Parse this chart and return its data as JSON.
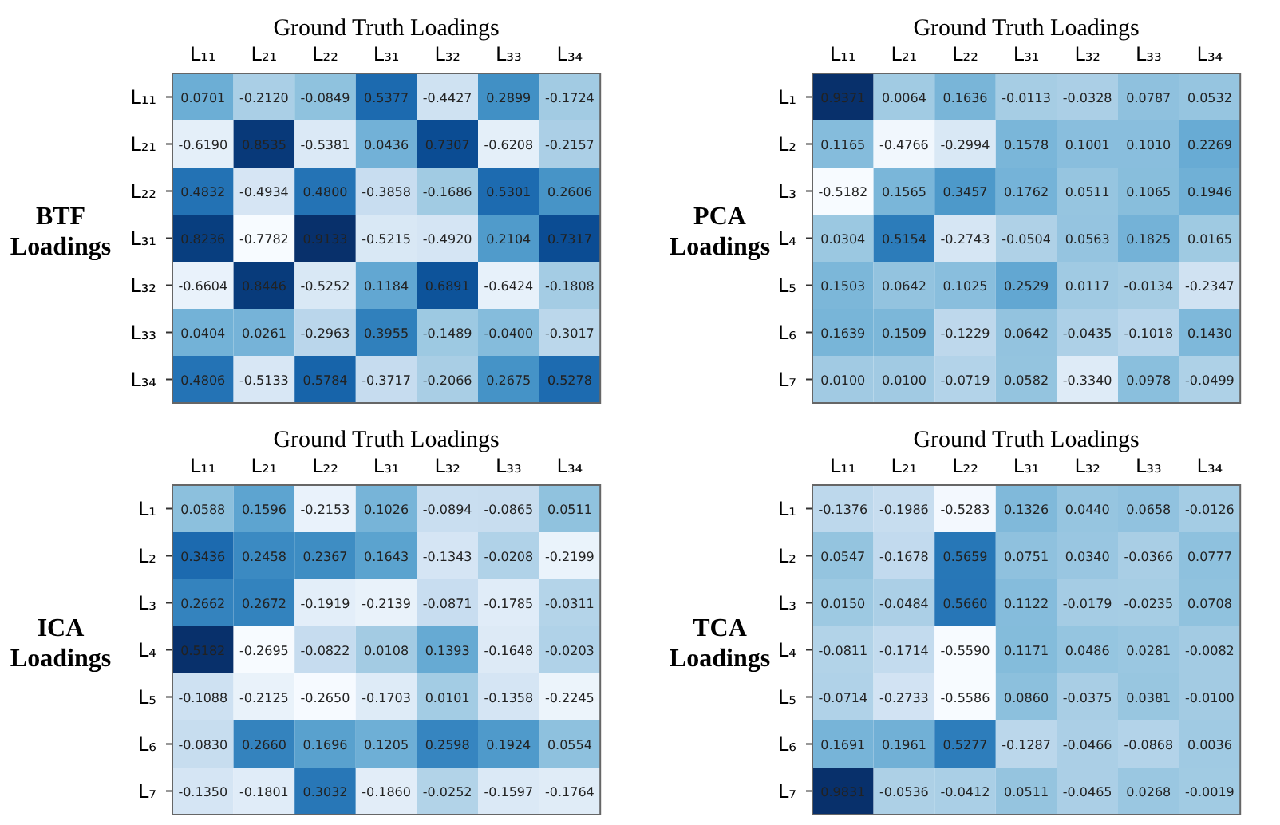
{
  "chart_data": [
    {
      "type": "heatmap",
      "title": "Ground Truth Loadings",
      "ylabel": "BTF Loadings",
      "categories": [
        "L₁₁",
        "L₂₁",
        "L₂₂",
        "L₃₁",
        "L₃₂",
        "L₃₃",
        "L₃₄"
      ],
      "y_categories": [
        "L₁₁",
        "L₂₁",
        "L₂₂",
        "L₃₁",
        "L₃₂",
        "L₃₃",
        "L₃₄"
      ],
      "cells": [
        [
          0.0701,
          -0.212,
          -0.0849,
          0.5377,
          -0.4427,
          0.2899,
          -0.1724
        ],
        [
          -0.619,
          0.8535,
          -0.5381,
          0.0436,
          0.7307,
          -0.6208,
          -0.2157
        ],
        [
          0.4832,
          -0.4934,
          0.48,
          -0.3858,
          -0.1686,
          0.5301,
          0.2606
        ],
        [
          0.8236,
          -0.7782,
          0.9133,
          -0.5215,
          -0.492,
          0.2104,
          0.7317
        ],
        [
          -0.6604,
          0.8446,
          -0.5252,
          0.1184,
          0.6891,
          -0.6424,
          -0.1808
        ],
        [
          0.0404,
          0.0261,
          -0.2963,
          0.3955,
          -0.1489,
          -0.04,
          -0.3017
        ],
        [
          0.4806,
          -0.5133,
          0.5784,
          -0.3717,
          -0.2066,
          0.2675,
          0.5278
        ]
      ],
      "cell_labels": [
        [
          "0.0701",
          "-0.2120",
          "-0.0849",
          "0.5377",
          "-0.4427",
          "0.2899",
          "-0.1724"
        ],
        [
          "-0.6190",
          "0.8535",
          "-0.5381",
          "0.0436",
          "0.7307",
          "-0.6208",
          "-0.2157"
        ],
        [
          "0.4832",
          "-0.4934",
          "0.4800",
          "-0.3858",
          "-0.1686",
          "0.5301",
          "0.2606"
        ],
        [
          "0.8236",
          "-0.7782",
          "0.9133",
          "-0.5215",
          "-0.4920",
          "0.2104",
          "0.7317"
        ],
        [
          "-0.6604",
          "0.8446",
          "-0.5252",
          "0.1184",
          "0.6891",
          "-0.6424",
          "-0.1808"
        ],
        [
          "0.0404",
          "0.0261",
          "-0.2963",
          "0.3955",
          "-0.1489",
          "-0.0400",
          "-0.3017"
        ],
        [
          "0.4806",
          "-0.5133",
          "0.5784",
          "-0.3717",
          "-0.2066",
          "0.2675",
          "0.5278"
        ]
      ]
    },
    {
      "type": "heatmap",
      "title": "Ground Truth Loadings",
      "ylabel": "PCA Loadings",
      "categories": [
        "L₁₁",
        "L₂₁",
        "L₂₂",
        "L₃₁",
        "L₃₂",
        "L₃₃",
        "L₃₄"
      ],
      "y_categories": [
        "L₁",
        "L₂",
        "L₃",
        "L₄",
        "L₅",
        "L₆",
        "L₇"
      ],
      "cells": [
        [
          0.9371,
          0.0064,
          0.1636,
          -0.0113,
          -0.0328,
          0.0787,
          0.0532
        ],
        [
          0.1165,
          -0.4766,
          -0.2994,
          0.1578,
          0.1001,
          0.101,
          0.2269
        ],
        [
          -0.5182,
          0.1565,
          0.3457,
          0.1762,
          0.0511,
          0.1065,
          0.1946
        ],
        [
          0.0304,
          0.5154,
          -0.2743,
          -0.0504,
          0.0563,
          0.1825,
          0.0165
        ],
        [
          0.1503,
          0.0642,
          0.1025,
          0.2529,
          0.0117,
          -0.0134,
          -0.2347
        ],
        [
          0.1639,
          0.1509,
          -0.1229,
          0.0642,
          -0.0435,
          -0.1018,
          0.143
        ],
        [
          0.01,
          0.01,
          -0.0719,
          0.0582,
          -0.334,
          0.0978,
          -0.0499
        ]
      ],
      "cell_labels": [
        [
          "0.9371",
          "0.0064",
          "0.1636",
          "-0.0113",
          "-0.0328",
          "0.0787",
          "0.0532"
        ],
        [
          "0.1165",
          "-0.4766",
          "-0.2994",
          "0.1578",
          "0.1001",
          "0.1010",
          "0.2269"
        ],
        [
          "-0.5182",
          "0.1565",
          "0.3457",
          "0.1762",
          "0.0511",
          "0.1065",
          "0.1946"
        ],
        [
          "0.0304",
          "0.5154",
          "-0.2743",
          "-0.0504",
          "0.0563",
          "0.1825",
          "0.0165"
        ],
        [
          "0.1503",
          "0.0642",
          "0.1025",
          "0.2529",
          "0.0117",
          "-0.0134",
          "-0.2347"
        ],
        [
          "0.1639",
          "0.1509",
          "-0.1229",
          "0.0642",
          "-0.0435",
          "-0.1018",
          "0.1430"
        ],
        [
          "0.0100",
          "0.0100",
          "-0.0719",
          "0.0582",
          "-0.3340",
          "0.0978",
          "-0.0499"
        ]
      ]
    },
    {
      "type": "heatmap",
      "title": "Ground Truth Loadings",
      "ylabel": "ICA Loadings",
      "categories": [
        "L₁₁",
        "L₂₁",
        "L₂₂",
        "L₃₁",
        "L₃₂",
        "L₃₃",
        "L₃₄"
      ],
      "y_categories": [
        "L₁",
        "L₂",
        "L₃",
        "L₄",
        "L₅",
        "L₆",
        "L₇"
      ],
      "cells": [
        [
          0.0588,
          0.1596,
          -0.2153,
          0.1026,
          -0.0894,
          -0.0865,
          0.0511
        ],
        [
          0.3436,
          0.2458,
          0.2367,
          0.1643,
          -0.1343,
          -0.0208,
          -0.2199
        ],
        [
          0.2662,
          0.2672,
          -0.1919,
          -0.2139,
          -0.0871,
          -0.1785,
          -0.0311
        ],
        [
          0.5182,
          -0.2695,
          -0.0822,
          0.0108,
          0.1393,
          -0.1648,
          -0.0203
        ],
        [
          -0.1088,
          -0.2125,
          -0.265,
          -0.1703,
          0.0101,
          -0.1358,
          -0.2245
        ],
        [
          -0.083,
          0.266,
          0.1696,
          0.1205,
          0.2598,
          0.1924,
          0.0554
        ],
        [
          -0.135,
          -0.1801,
          0.3032,
          -0.186,
          -0.0252,
          -0.1597,
          -0.1764
        ]
      ],
      "cell_labels": [
        [
          "0.0588",
          "0.1596",
          "-0.2153",
          "0.1026",
          "-0.0894",
          "-0.0865",
          "0.0511"
        ],
        [
          "0.3436",
          "0.2458",
          "0.2367",
          "0.1643",
          "-0.1343",
          "-0.0208",
          "-0.2199"
        ],
        [
          "0.2662",
          "0.2672",
          "-0.1919",
          "-0.2139",
          "-0.0871",
          "-0.1785",
          "-0.0311"
        ],
        [
          "0.5182",
          "-0.2695",
          "-0.0822",
          "0.0108",
          "0.1393",
          "-0.1648",
          "-0.0203"
        ],
        [
          "-0.1088",
          "-0.2125",
          "-0.2650",
          "-0.1703",
          "0.0101",
          "-0.1358",
          "-0.2245"
        ],
        [
          "-0.0830",
          "0.2660",
          "0.1696",
          "0.1205",
          "0.2598",
          "0.1924",
          "0.0554"
        ],
        [
          "-0.1350",
          "-0.1801",
          "0.3032",
          "-0.1860",
          "-0.0252",
          "-0.1597",
          "-0.1764"
        ]
      ]
    },
    {
      "type": "heatmap",
      "title": "Ground Truth Loadings",
      "ylabel": "TCA Loadings",
      "categories": [
        "L₁₁",
        "L₂₁",
        "L₂₂",
        "L₃₁",
        "L₃₂",
        "L₃₃",
        "L₃₄"
      ],
      "y_categories": [
        "L₁",
        "L₂",
        "L₃",
        "L₄",
        "L₅",
        "L₆",
        "L₇"
      ],
      "cells": [
        [
          -0.1376,
          -0.1986,
          -0.5283,
          0.1326,
          0.044,
          0.0658,
          -0.0126
        ],
        [
          0.0547,
          -0.1678,
          0.5659,
          0.0751,
          0.034,
          -0.0366,
          0.0777
        ],
        [
          0.015,
          -0.0484,
          0.566,
          0.1122,
          -0.0179,
          -0.0235,
          0.0708
        ],
        [
          -0.0811,
          -0.1714,
          -0.559,
          0.1171,
          0.0486,
          0.0281,
          -0.0082
        ],
        [
          -0.0714,
          -0.2733,
          -0.5586,
          0.086,
          -0.0375,
          0.0381,
          -0.01
        ],
        [
          0.1691,
          0.1961,
          0.5277,
          -0.1287,
          -0.0466,
          -0.0868,
          0.0036
        ],
        [
          0.9831,
          -0.0536,
          -0.0412,
          0.0511,
          -0.0465,
          0.0268,
          -0.0019
        ]
      ],
      "cell_labels": [
        [
          "-0.1376",
          "-0.1986",
          "-0.5283",
          "0.1326",
          "0.0440",
          "0.0658",
          "-0.0126"
        ],
        [
          "0.0547",
          "-0.1678",
          "0.5659",
          "0.0751",
          "0.0340",
          "-0.0366",
          "0.0777"
        ],
        [
          "0.0150",
          "-0.0484",
          "0.5660",
          "0.1122",
          "-0.0179",
          "-0.0235",
          "0.0708"
        ],
        [
          "-0.0811",
          "-0.1714",
          "-0.5590",
          "0.1171",
          "0.0486",
          "0.0281",
          "-0.0082"
        ],
        [
          "-0.0714",
          "-0.2733",
          "-0.5586",
          "0.0860",
          "-0.0375",
          "0.0381",
          "-0.0100"
        ],
        [
          "0.1691",
          "0.1961",
          "0.5277",
          "-0.1287",
          "-0.0466",
          "-0.0868",
          "0.0036"
        ],
        [
          "0.9831",
          "-0.0536",
          "-0.0412",
          "0.0511",
          "-0.0465",
          "0.0268",
          "-0.0019"
        ]
      ]
    }
  ]
}
